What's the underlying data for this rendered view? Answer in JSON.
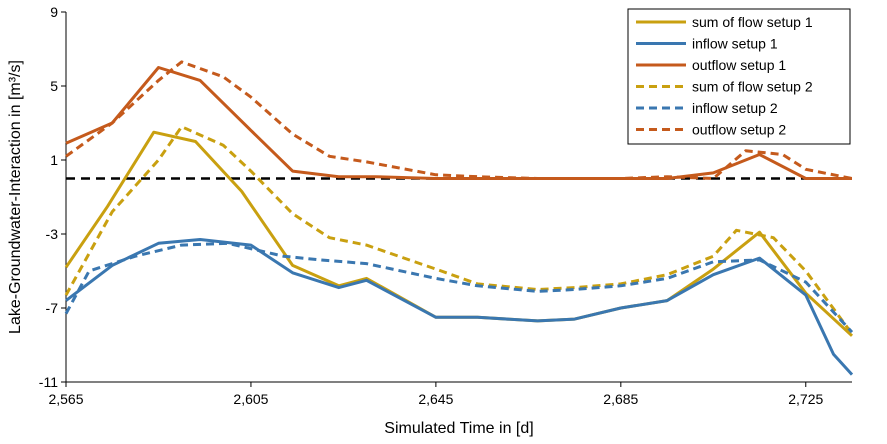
{
  "chart_data": {
    "type": "line",
    "title": "",
    "xlabel": "Simulated Time in [d]",
    "ylabel": "Lake-Groundwater-Interaction in [m³/s]",
    "xlim": [
      2565,
      2735
    ],
    "ylim": [
      -11,
      9
    ],
    "x_ticks": [
      2565,
      2605,
      2645,
      2685,
      2725
    ],
    "x_tick_labels": [
      "2,565",
      "2,605",
      "2,645",
      "2,685",
      "2,725"
    ],
    "y_ticks": [
      -11,
      -7,
      -3,
      1,
      5,
      9
    ],
    "y_tick_labels": [
      "-11",
      "-7",
      "-3",
      "1",
      "5",
      "9"
    ],
    "grid": "none",
    "legend_position": "top-right",
    "reference_line": {
      "y": 0,
      "style": "dashed",
      "color": "#000000"
    },
    "series": [
      {
        "name": "sum of flow setup 1",
        "color": "#C9A010",
        "dash": "solid",
        "x": [
          2565,
          2574,
          2584,
          2593,
          2603,
          2614,
          2624,
          2630,
          2645,
          2654,
          2667,
          2675,
          2685,
          2695,
          2705,
          2715,
          2725,
          2735
        ],
        "y": [
          -4.8,
          -1.5,
          2.5,
          2.0,
          -0.7,
          -4.7,
          -5.8,
          -5.4,
          -7.5,
          -7.5,
          -7.7,
          -7.6,
          -7.0,
          -6.6,
          -4.9,
          -2.9,
          -6.2,
          -8.5
        ]
      },
      {
        "name": "inflow setup 1",
        "color": "#3A77B0",
        "dash": "solid",
        "x": [
          2565,
          2575,
          2585,
          2594,
          2605,
          2614,
          2624,
          2630,
          2645,
          2654,
          2667,
          2675,
          2685,
          2695,
          2705,
          2715,
          2725,
          2731,
          2735
        ],
        "y": [
          -6.6,
          -4.7,
          -3.5,
          -3.3,
          -3.6,
          -5.1,
          -5.9,
          -5.5,
          -7.5,
          -7.5,
          -7.7,
          -7.6,
          -7.0,
          -6.6,
          -5.2,
          -4.3,
          -6.3,
          -9.5,
          -10.6
        ]
      },
      {
        "name": "outflow setup 1",
        "color": "#C55A1C",
        "dash": "solid",
        "x": [
          2565,
          2575,
          2585,
          2594,
          2605,
          2614,
          2624,
          2632,
          2645,
          2660,
          2675,
          2685,
          2695,
          2705,
          2715,
          2725,
          2735
        ],
        "y": [
          1.9,
          3.0,
          6.0,
          5.3,
          2.6,
          0.4,
          0.1,
          0.1,
          0.0,
          0.0,
          0.0,
          0.0,
          0.0,
          0.3,
          1.3,
          0.0,
          0.0
        ]
      },
      {
        "name": "sum of flow setup 2",
        "color": "#C9A010",
        "dash": "dashed",
        "x": [
          2565,
          2575,
          2585,
          2590,
          2599,
          2605,
          2614,
          2622,
          2630,
          2645,
          2654,
          2667,
          2675,
          2685,
          2695,
          2705,
          2710,
          2718,
          2725,
          2735
        ],
        "y": [
          -6.3,
          -1.8,
          1.0,
          2.8,
          1.8,
          0.4,
          -1.9,
          -3.2,
          -3.6,
          -4.9,
          -5.7,
          -6.0,
          -5.9,
          -5.7,
          -5.2,
          -4.2,
          -2.8,
          -3.2,
          -5.0,
          -8.4
        ]
      },
      {
        "name": "inflow setup 2",
        "color": "#3A77B0",
        "dash": "dashed",
        "x": [
          2565,
          2570,
          2580,
          2590,
          2600,
          2612,
          2620,
          2630,
          2645,
          2654,
          2667,
          2675,
          2685,
          2695,
          2705,
          2715,
          2725,
          2735
        ],
        "y": [
          -7.3,
          -5.0,
          -4.2,
          -3.6,
          -3.5,
          -4.2,
          -4.4,
          -4.6,
          -5.4,
          -5.8,
          -6.1,
          -6.0,
          -5.8,
          -5.4,
          -4.5,
          -4.4,
          -5.6,
          -8.3
        ]
      },
      {
        "name": "outflow setup 2",
        "color": "#C55A1C",
        "dash": "dashed",
        "x": [
          2565,
          2575,
          2585,
          2590,
          2599,
          2605,
          2614,
          2622,
          2630,
          2645,
          2654,
          2667,
          2675,
          2685,
          2695,
          2705,
          2712,
          2720,
          2725,
          2735
        ],
        "y": [
          1.2,
          3.0,
          5.3,
          6.3,
          5.5,
          4.4,
          2.4,
          1.2,
          0.9,
          0.2,
          0.1,
          0.0,
          0.0,
          0.0,
          0.1,
          0.0,
          1.5,
          1.3,
          0.5,
          0.0
        ]
      }
    ]
  }
}
